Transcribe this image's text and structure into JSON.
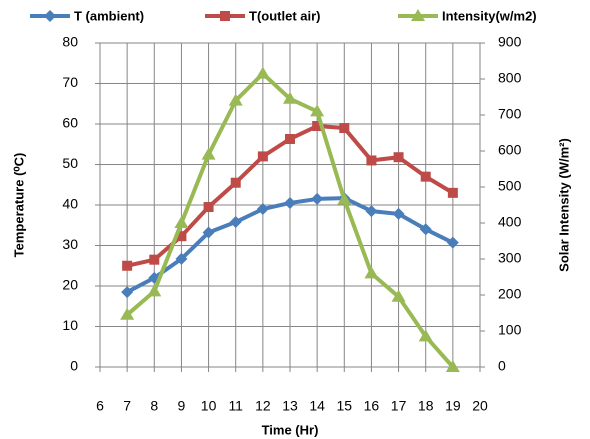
{
  "chart_data": {
    "type": "line",
    "x_label": "Time (Hr)",
    "y_label": "Temperature (⁰C)",
    "y2_label": "Solar Intensity (W/m²)",
    "x": [
      7,
      8,
      9,
      10,
      11,
      12,
      13,
      14,
      15,
      16,
      17,
      18,
      19
    ],
    "series": [
      {
        "name": "T (ambient)",
        "color": "#4a7ebb",
        "marker": "diamond",
        "values": [
          18.5,
          22,
          26.7,
          33.2,
          35.8,
          39,
          40.5,
          41.5,
          41.7,
          38.5,
          37.8,
          34,
          30.7
        ]
      },
      {
        "name": "T(outlet air)",
        "color": "#be4b48",
        "marker": "square",
        "values": [
          25,
          26.5,
          32.3,
          39.5,
          45.5,
          52,
          56.3,
          59.5,
          59,
          51,
          51.8,
          47,
          43
        ]
      },
      {
        "name": "Intensity(w/m2)",
        "color": "#98b954",
        "marker": "triangle",
        "axis": "y2",
        "values": [
          145,
          210,
          400,
          590,
          740,
          815,
          745,
          710,
          465,
          260,
          195,
          85,
          0
        ]
      }
    ],
    "xlim": [
      6,
      20
    ],
    "xticks": [
      6,
      7,
      8,
      9,
      10,
      11,
      12,
      13,
      14,
      15,
      16,
      17,
      18,
      19,
      20
    ],
    "ylim": [
      0,
      80
    ],
    "yticks": [
      0,
      10,
      20,
      30,
      40,
      50,
      60,
      70,
      80
    ],
    "y2lim": [
      0,
      900
    ],
    "y2ticks": [
      0,
      100,
      200,
      300,
      400,
      500,
      600,
      700,
      800,
      900
    ],
    "grid": true,
    "legend": "top"
  }
}
